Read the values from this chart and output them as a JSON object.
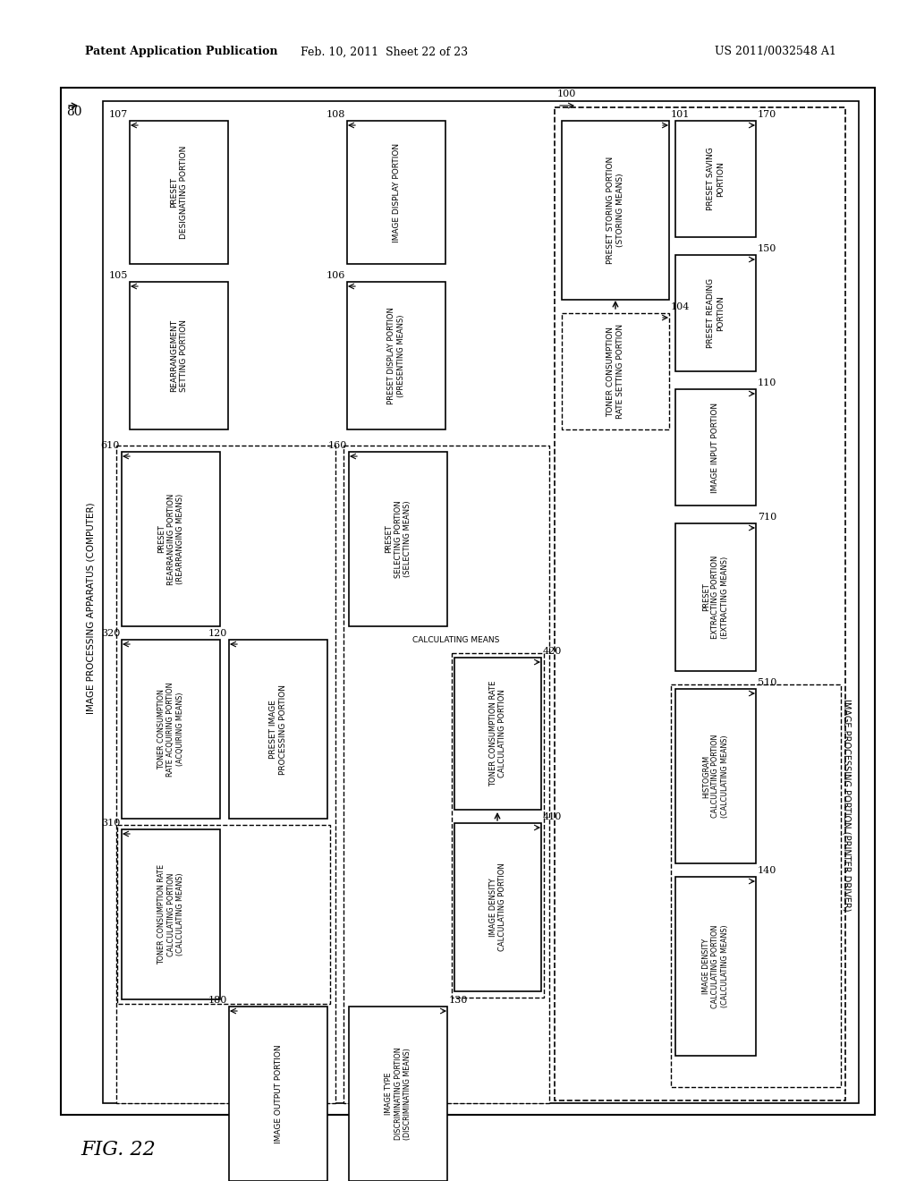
{
  "header_left": "Patent Application Publication",
  "header_mid": "Feb. 10, 2011  Sheet 22 of 23",
  "header_right": "US 2011/0032548 A1",
  "fig_label": "FIG. 22",
  "bg_color": "#ffffff"
}
